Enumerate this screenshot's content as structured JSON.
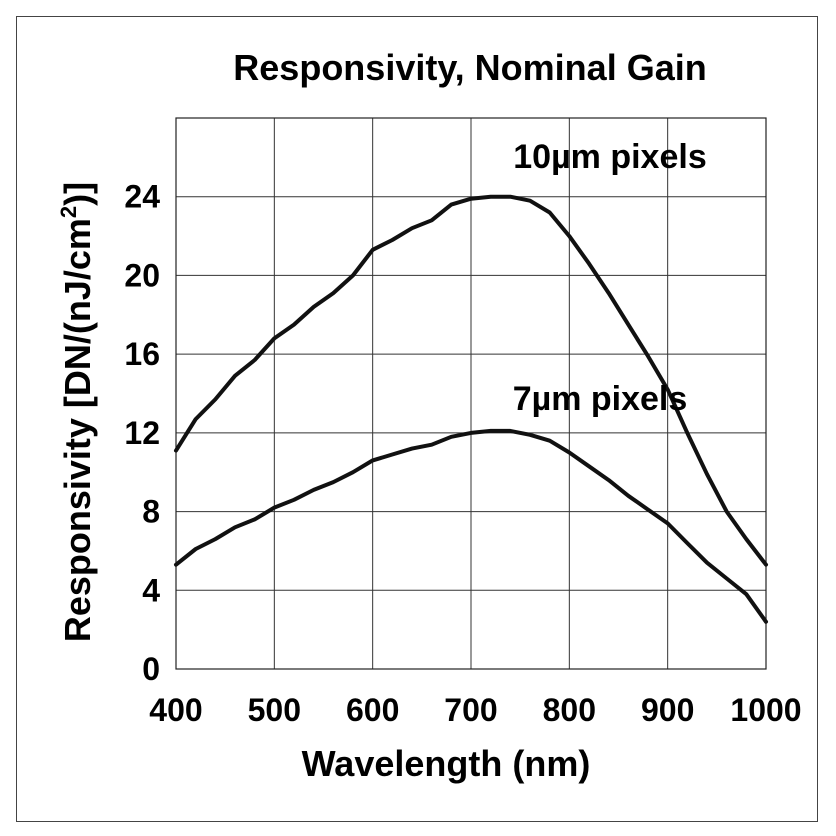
{
  "chart_data": {
    "type": "line",
    "title": "Responsivity, Nominal Gain",
    "xlabel": "Wavelength (nm)",
    "ylabel_main": "Responsivity [DN/(nJ/cm",
    "ylabel_sup": "2",
    "ylabel_end": ")]",
    "xlim": [
      400,
      1000
    ],
    "ylim": [
      0,
      28
    ],
    "xticks": [
      400,
      500,
      600,
      700,
      800,
      900,
      1000
    ],
    "yticks": [
      0,
      4,
      8,
      12,
      16,
      20,
      24
    ],
    "grid": true,
    "series": [
      {
        "name": "10µm pixels",
        "x": [
          400,
          420,
          440,
          460,
          480,
          500,
          520,
          540,
          560,
          580,
          600,
          620,
          640,
          660,
          680,
          700,
          720,
          740,
          760,
          780,
          800,
          820,
          840,
          860,
          880,
          900,
          920,
          940,
          960,
          980,
          1000
        ],
        "y": [
          11.1,
          12.7,
          13.7,
          14.9,
          15.7,
          16.8,
          17.5,
          18.4,
          19.1,
          20.0,
          21.3,
          21.8,
          22.4,
          22.8,
          23.6,
          23.9,
          24.0,
          24.0,
          23.8,
          23.2,
          22.0,
          20.6,
          19.1,
          17.5,
          15.9,
          14.2,
          12.0,
          9.9,
          8.0,
          6.6,
          5.3
        ]
      },
      {
        "name": "7µm pixels",
        "x": [
          400,
          420,
          440,
          460,
          480,
          500,
          520,
          540,
          560,
          580,
          600,
          620,
          640,
          660,
          680,
          700,
          720,
          740,
          760,
          780,
          800,
          820,
          840,
          860,
          880,
          900,
          920,
          940,
          960,
          980,
          1000
        ],
        "y": [
          5.3,
          6.1,
          6.6,
          7.2,
          7.6,
          8.2,
          8.6,
          9.1,
          9.5,
          10.0,
          10.6,
          10.9,
          11.2,
          11.4,
          11.8,
          12.0,
          12.1,
          12.1,
          11.9,
          11.6,
          11.0,
          10.3,
          9.6,
          8.8,
          8.1,
          7.4,
          6.4,
          5.4,
          4.6,
          3.8,
          2.4
        ]
      }
    ]
  }
}
